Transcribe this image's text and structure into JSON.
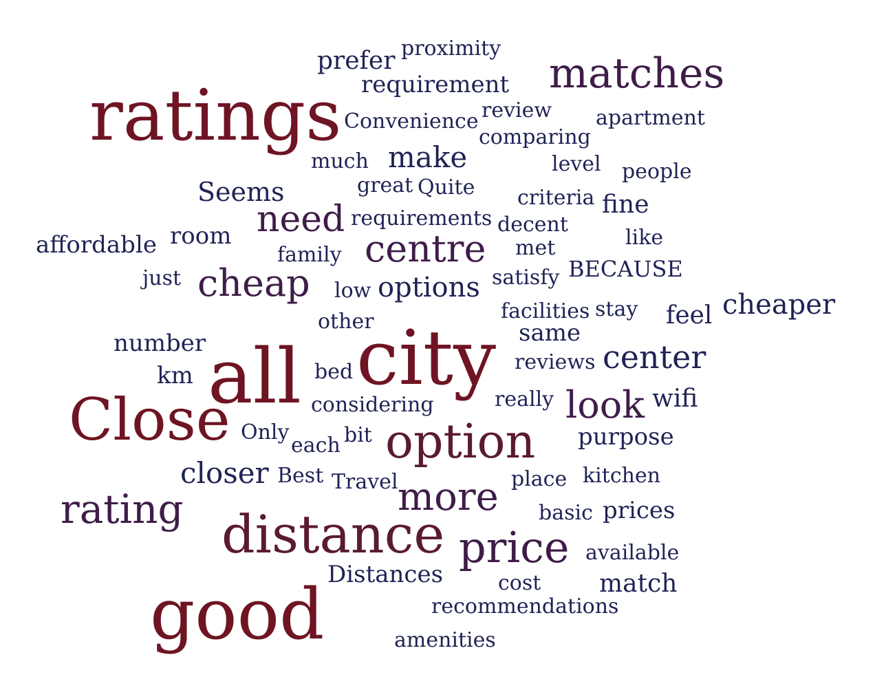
{
  "palette": {
    "dark_red": "#6e1423",
    "maroon": "#5a1a33",
    "plum": "#3f1d48",
    "navy": "#1f2355"
  },
  "words": [
    {
      "text": "ratings",
      "tone": "dark_red"
    },
    {
      "text": "city",
      "tone": "dark_red"
    },
    {
      "text": "all",
      "tone": "dark_red"
    },
    {
      "text": "good",
      "tone": "dark_red"
    },
    {
      "text": "Close",
      "tone": "dark_red"
    },
    {
      "text": "distance",
      "tone": "maroon"
    },
    {
      "text": "option",
      "tone": "maroon"
    },
    {
      "text": "matches",
      "tone": "plum"
    },
    {
      "text": "price",
      "tone": "plum"
    },
    {
      "text": "rating",
      "tone": "plum"
    },
    {
      "text": "more",
      "tone": "plum"
    },
    {
      "text": "centre",
      "tone": "plum"
    },
    {
      "text": "cheap",
      "tone": "plum"
    },
    {
      "text": "look",
      "tone": "plum"
    },
    {
      "text": "need",
      "tone": "plum"
    },
    {
      "text": "center",
      "tone": "navy"
    },
    {
      "text": "cheaper",
      "tone": "navy"
    },
    {
      "text": "options",
      "tone": "navy"
    },
    {
      "text": "closer",
      "tone": "navy"
    },
    {
      "text": "make",
      "tone": "navy"
    },
    {
      "text": "Seems",
      "tone": "navy"
    },
    {
      "text": "Distances",
      "tone": "navy"
    },
    {
      "text": "match",
      "tone": "navy"
    },
    {
      "text": "purpose",
      "tone": "navy"
    },
    {
      "text": "prices",
      "tone": "navy"
    },
    {
      "text": "feel",
      "tone": "navy"
    },
    {
      "text": "wifi",
      "tone": "navy"
    },
    {
      "text": "same",
      "tone": "navy"
    },
    {
      "text": "fine",
      "tone": "navy"
    },
    {
      "text": "requirement",
      "tone": "navy"
    },
    {
      "text": "prefer",
      "tone": "navy"
    },
    {
      "text": "proximity",
      "tone": "navy"
    },
    {
      "text": "Convenience",
      "tone": "navy"
    },
    {
      "text": "review",
      "tone": "navy"
    },
    {
      "text": "comparing",
      "tone": "navy"
    },
    {
      "text": "apartment",
      "tone": "navy"
    },
    {
      "text": "much",
      "tone": "navy"
    },
    {
      "text": "level",
      "tone": "navy"
    },
    {
      "text": "people",
      "tone": "navy"
    },
    {
      "text": "great",
      "tone": "navy"
    },
    {
      "text": "Quite",
      "tone": "navy"
    },
    {
      "text": "criteria",
      "tone": "navy"
    },
    {
      "text": "requirements",
      "tone": "navy"
    },
    {
      "text": "decent",
      "tone": "navy"
    },
    {
      "text": "room",
      "tone": "navy"
    },
    {
      "text": "affordable",
      "tone": "navy"
    },
    {
      "text": "family",
      "tone": "navy"
    },
    {
      "text": "met",
      "tone": "navy"
    },
    {
      "text": "like",
      "tone": "navy"
    },
    {
      "text": "BECAUSE",
      "tone": "navy"
    },
    {
      "text": "just",
      "tone": "navy"
    },
    {
      "text": "low",
      "tone": "navy"
    },
    {
      "text": "satisfy",
      "tone": "navy"
    },
    {
      "text": "facilities",
      "tone": "navy"
    },
    {
      "text": "stay",
      "tone": "navy"
    },
    {
      "text": "other",
      "tone": "navy"
    },
    {
      "text": "number",
      "tone": "navy"
    },
    {
      "text": "reviews",
      "tone": "navy"
    },
    {
      "text": "km",
      "tone": "navy"
    },
    {
      "text": "bed",
      "tone": "navy"
    },
    {
      "text": "considering",
      "tone": "navy"
    },
    {
      "text": "really",
      "tone": "navy"
    },
    {
      "text": "Only",
      "tone": "navy"
    },
    {
      "text": "each",
      "tone": "navy"
    },
    {
      "text": "bit",
      "tone": "navy"
    },
    {
      "text": "Best",
      "tone": "navy"
    },
    {
      "text": "Travel",
      "tone": "navy"
    },
    {
      "text": "place",
      "tone": "navy"
    },
    {
      "text": "kitchen",
      "tone": "navy"
    },
    {
      "text": "basic",
      "tone": "navy"
    },
    {
      "text": "available",
      "tone": "navy"
    },
    {
      "text": "cost",
      "tone": "navy"
    },
    {
      "text": "recommendations",
      "tone": "navy"
    },
    {
      "text": "amenities",
      "tone": "navy"
    }
  ]
}
